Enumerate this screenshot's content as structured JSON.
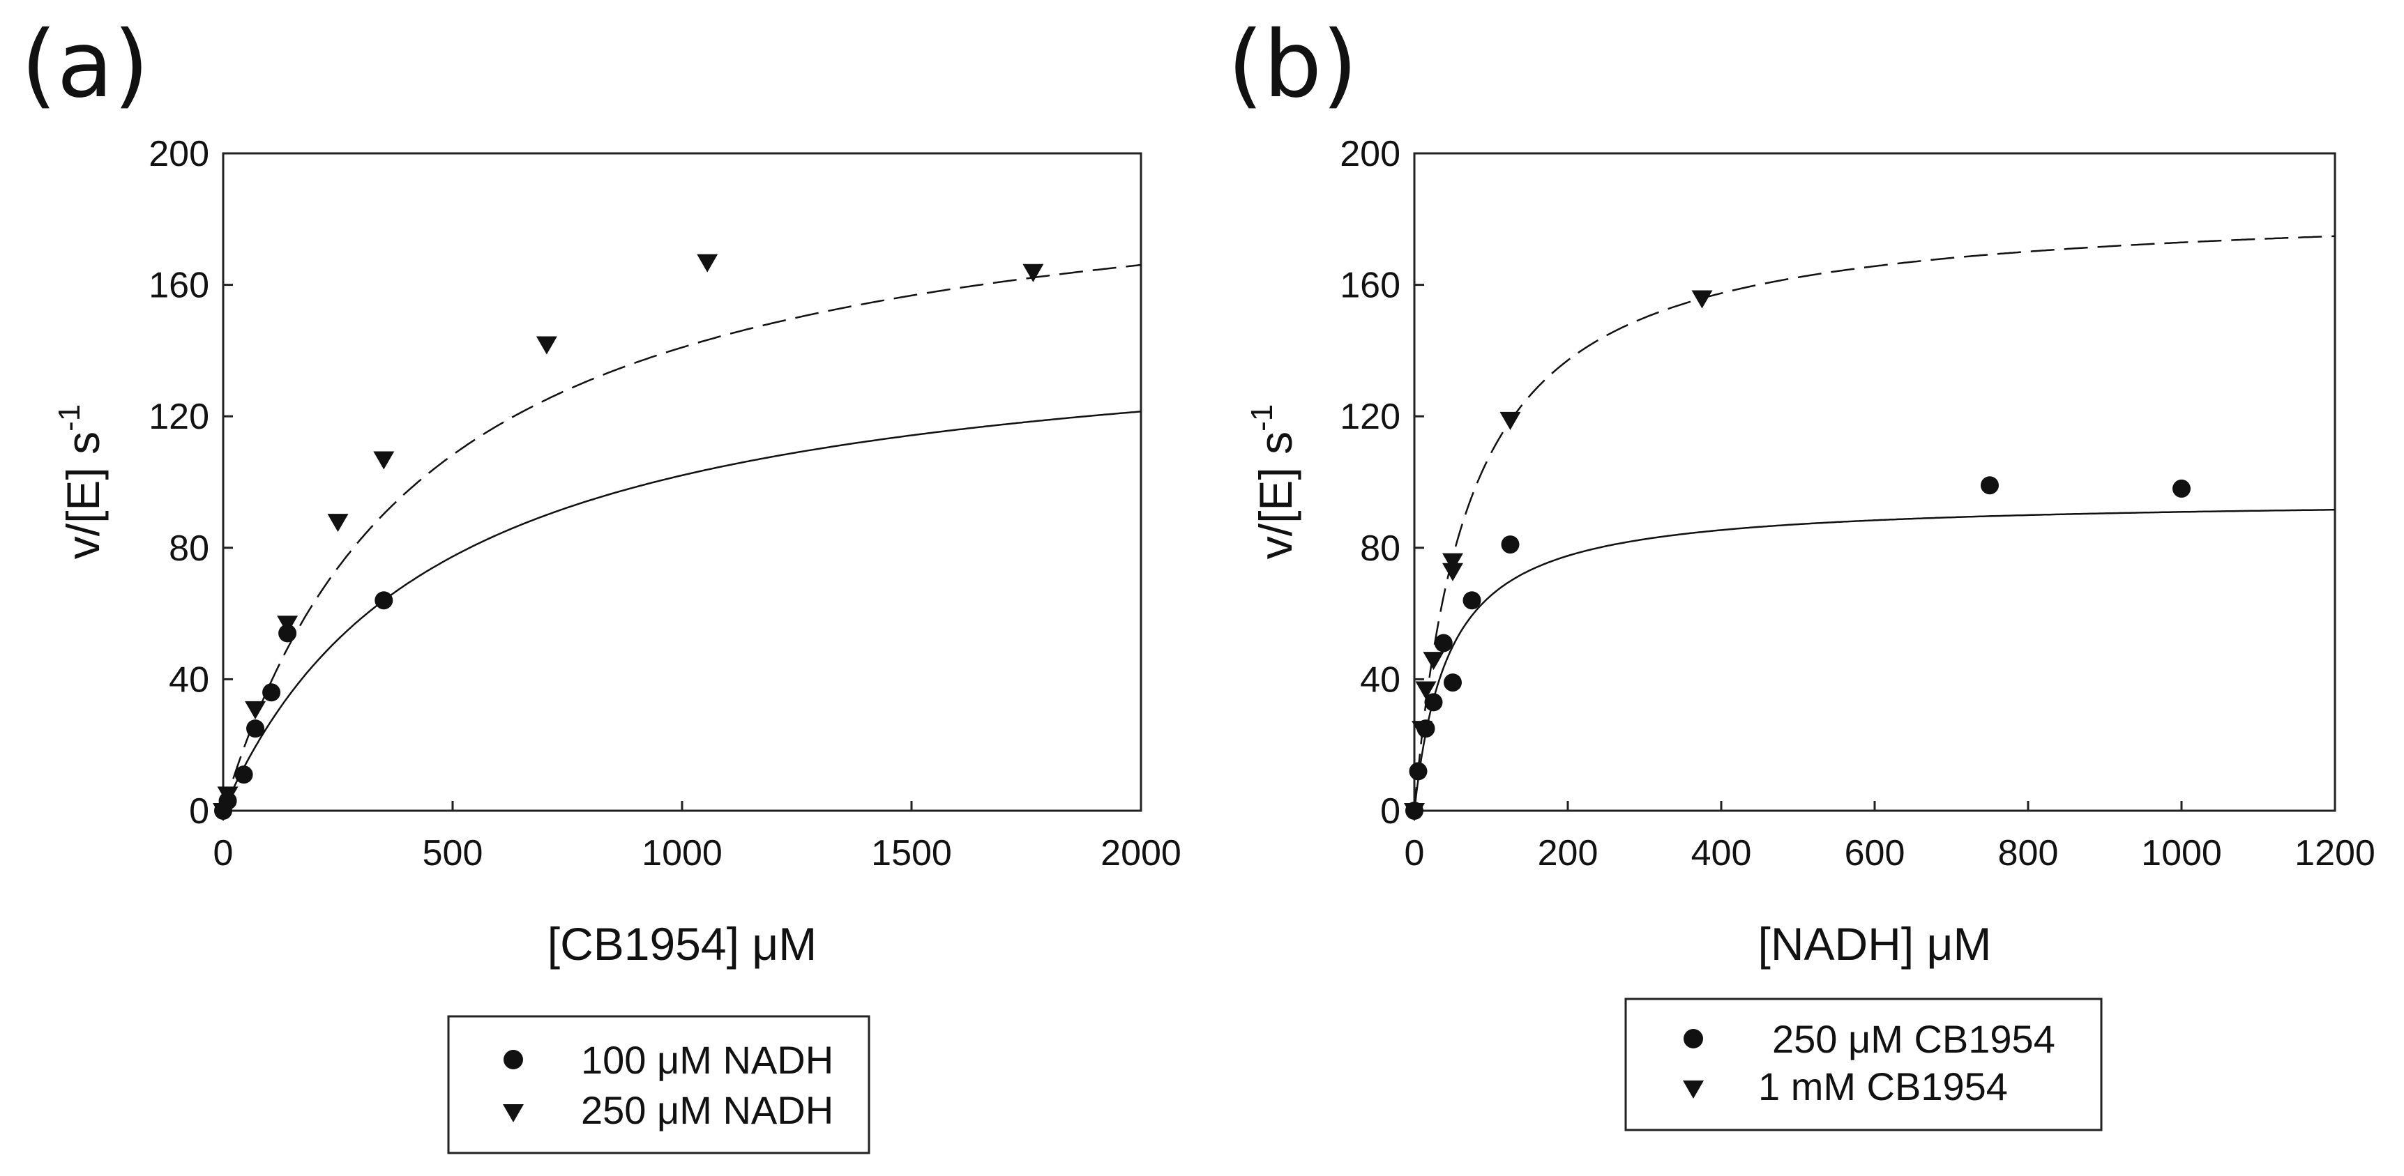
{
  "chart_data": [
    {
      "type": "scatter",
      "panel_label": "(a)",
      "xlabel": "[CB1954] μM",
      "ylabel": "v/[E] s",
      "ylabel_sup": "-1",
      "xlim": [
        0,
        2000
      ],
      "ylim": [
        0,
        200
      ],
      "x_ticks": [
        "0",
        "500",
        "1000",
        "1500",
        "2000"
      ],
      "x_tick_values": [
        0,
        500,
        1000,
        1500,
        2000
      ],
      "y_ticks": [
        "0",
        "40",
        "80",
        "120",
        "160",
        "200"
      ],
      "y_tick_values": [
        0,
        40,
        80,
        120,
        160,
        200
      ],
      "series": [
        {
          "name": "100 μM NADH",
          "marker": "circle",
          "line": "solid",
          "fit": {
            "vmax": 150,
            "km": 470
          },
          "x": [
            0,
            10,
            45,
            70,
            105,
            140,
            350
          ],
          "y": [
            0,
            3,
            11,
            25,
            36,
            54,
            64
          ]
        },
        {
          "name": "250 μM NADH",
          "marker": "triangle-down",
          "line": "dashed",
          "fit": {
            "vmax": 202,
            "km": 433
          },
          "x": [
            0,
            10,
            70,
            140,
            250,
            350,
            705,
            1055,
            1765
          ],
          "y": [
            0,
            5,
            31,
            57,
            88,
            107,
            142,
            167,
            164
          ]
        }
      ]
    },
    {
      "type": "scatter",
      "panel_label": "(b)",
      "xlabel": "[NADH] μM",
      "ylabel": "v/[E] s",
      "ylabel_sup": "-1",
      "xlim": [
        0,
        1200
      ],
      "ylim": [
        0,
        200
      ],
      "x_ticks": [
        "0",
        "200",
        "400",
        "600",
        "800",
        "1000",
        "1200"
      ],
      "x_tick_values": [
        0,
        200,
        400,
        600,
        800,
        1000,
        1200
      ],
      "y_ticks": [
        "0",
        "40",
        "80",
        "120",
        "160",
        "200"
      ],
      "y_tick_values": [
        0,
        40,
        80,
        120,
        160,
        200
      ],
      "series": [
        {
          "name": "250 μM CB1954",
          "marker": "circle",
          "line": "solid",
          "fit": {
            "vmax": 95,
            "km": 45
          },
          "x": [
            0,
            5,
            15,
            25,
            38,
            50,
            75,
            125,
            750,
            1000
          ],
          "y": [
            0,
            12,
            25,
            33,
            51,
            39,
            64,
            81,
            99,
            98
          ]
        },
        {
          "name": "1 mM CB1954",
          "marker": "triangle-down",
          "line": "dashed",
          "fit": {
            "vmax": 185,
            "km": 70
          },
          "x": [
            0,
            10,
            15,
            25,
            50,
            50,
            125,
            375
          ],
          "y": [
            0,
            25,
            37,
            46,
            73,
            76,
            119,
            156
          ]
        }
      ]
    }
  ]
}
